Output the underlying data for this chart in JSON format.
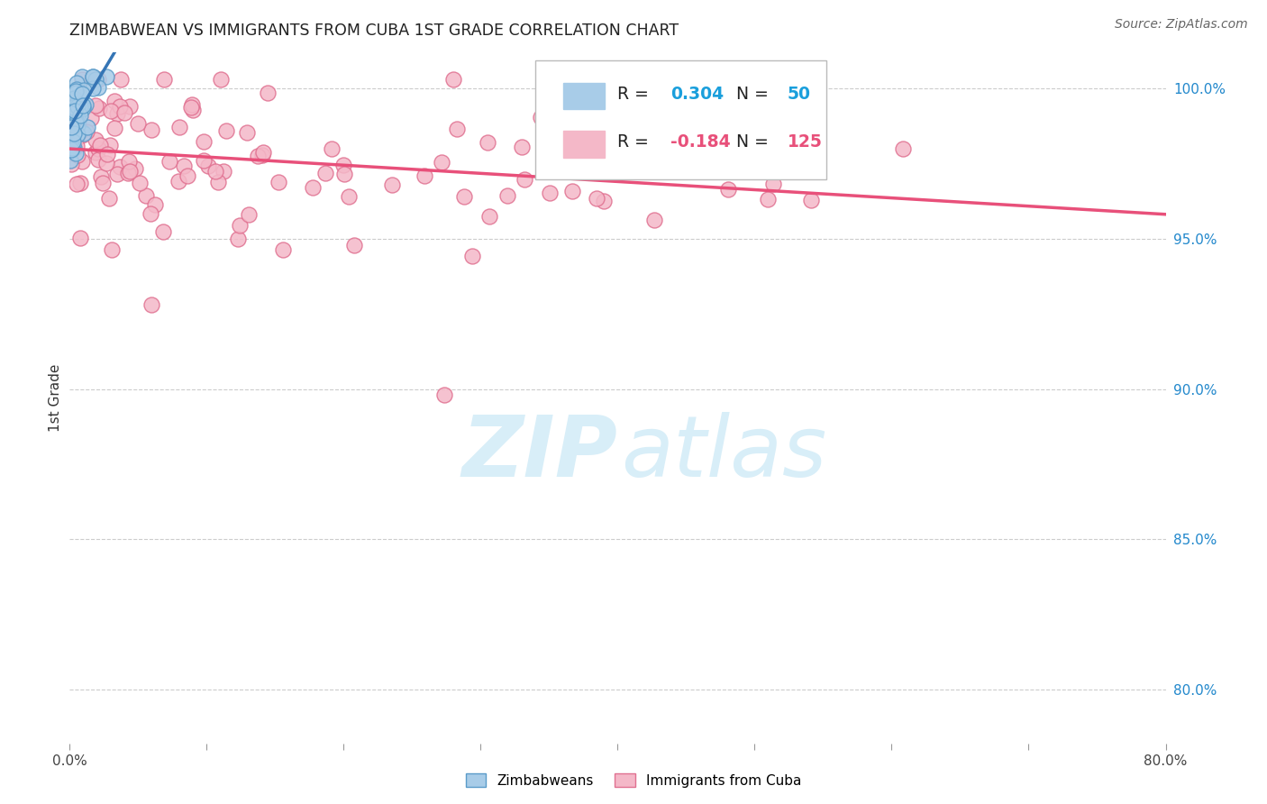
{
  "title": "ZIMBABWEAN VS IMMIGRANTS FROM CUBA 1ST GRADE CORRELATION CHART",
  "source": "Source: ZipAtlas.com",
  "ylabel": "1st Grade",
  "ylabel_right_labels": [
    "100.0%",
    "95.0%",
    "90.0%",
    "85.0%",
    "80.0%"
  ],
  "ylabel_right_values": [
    1.0,
    0.95,
    0.9,
    0.85,
    0.8
  ],
  "xlim": [
    0.0,
    0.8
  ],
  "ylim": [
    0.782,
    1.012
  ],
  "blue_R": 0.304,
  "blue_N": 50,
  "pink_R": -0.184,
  "pink_N": 125,
  "blue_color": "#a8cce8",
  "pink_color": "#f4b8c8",
  "blue_edge_color": "#5a9bc9",
  "pink_edge_color": "#e07090",
  "blue_line_color": "#3575b5",
  "pink_line_color": "#e8507a",
  "legend_R_color_blue": "#1a9fdc",
  "legend_R_color_pink": "#e8507a",
  "watermark_color": "#d8eef8"
}
